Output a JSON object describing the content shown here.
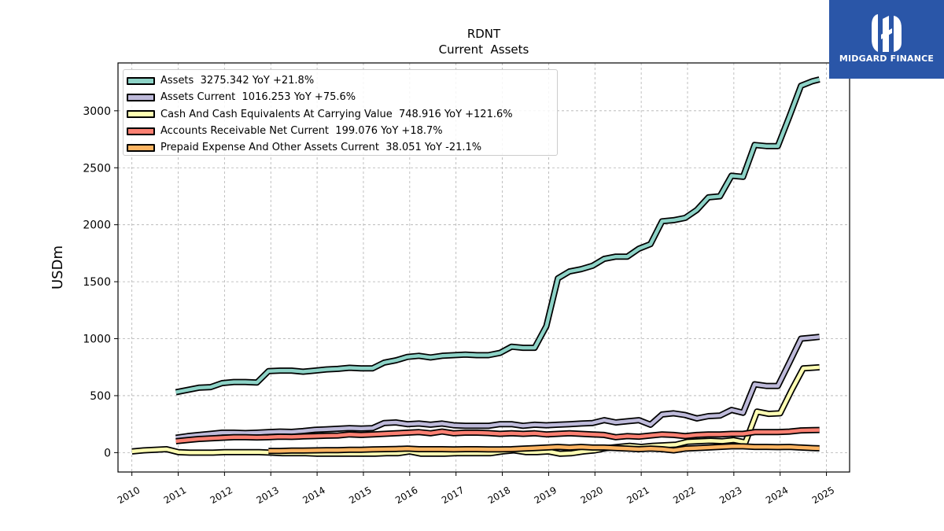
{
  "brand": {
    "name": "MIDGARD FINANCE",
    "bg_color": "#2a56a8"
  },
  "chart_data": {
    "type": "line",
    "title": "RDNT",
    "subtitle": "Current  Assets",
    "ylabel": "USDm",
    "xlabel": "",
    "xlim": [
      2009.7,
      2025.5
    ],
    "ylim": [
      -170,
      3420
    ],
    "yticks": [
      0,
      500,
      1000,
      1500,
      2000,
      2500,
      3000
    ],
    "xticks": [
      "2010",
      "2011",
      "2012",
      "2013",
      "2014",
      "2015",
      "2016",
      "2017",
      "2018",
      "2019",
      "2020",
      "2021",
      "2022",
      "2023",
      "2024",
      "2025"
    ],
    "grid": true,
    "legend_position": "top-left",
    "series": [
      {
        "name": "Assets  3275.342 YoY +21.8%",
        "color": "#8dd3c7",
        "x": [
          2010.95,
          2011.2,
          2011.45,
          2011.7,
          2011.95,
          2012.2,
          2012.45,
          2012.7,
          2012.95,
          2013.2,
          2013.45,
          2013.7,
          2013.95,
          2014.2,
          2014.45,
          2014.7,
          2014.95,
          2015.2,
          2015.45,
          2015.7,
          2015.95,
          2016.2,
          2016.45,
          2016.7,
          2016.95,
          2017.2,
          2017.45,
          2017.7,
          2017.95,
          2018.2,
          2018.45,
          2018.7,
          2018.95,
          2019.2,
          2019.45,
          2019.7,
          2019.95,
          2020.2,
          2020.45,
          2020.7,
          2020.95,
          2021.2,
          2021.45,
          2021.7,
          2021.95,
          2022.2,
          2022.45,
          2022.7,
          2022.95,
          2023.2,
          2023.45,
          2023.7,
          2023.95,
          2024.2,
          2024.45,
          2024.7,
          2024.85
        ],
        "values": [
          530,
          550,
          570,
          575,
          610,
          620,
          620,
          615,
          715,
          720,
          720,
          710,
          720,
          730,
          735,
          745,
          740,
          740,
          790,
          810,
          840,
          850,
          835,
          850,
          855,
          860,
          855,
          855,
          875,
          930,
          920,
          920,
          1110,
          1530,
          1590,
          1610,
          1640,
          1700,
          1720,
          1720,
          1790,
          1830,
          2030,
          2040,
          2060,
          2130,
          2240,
          2250,
          2430,
          2420,
          2700,
          2690,
          2690,
          2950,
          3220,
          3260,
          3275
        ]
      },
      {
        "name": "Assets Current  1016.253 YoY +75.6%",
        "color": "#bebada",
        "x": [
          2010.95,
          2011.2,
          2011.45,
          2011.7,
          2011.95,
          2012.2,
          2012.45,
          2012.7,
          2012.95,
          2013.2,
          2013.45,
          2013.7,
          2013.95,
          2014.2,
          2014.45,
          2014.7,
          2014.95,
          2015.2,
          2015.45,
          2015.7,
          2015.95,
          2016.2,
          2016.45,
          2016.7,
          2016.95,
          2017.2,
          2017.45,
          2017.7,
          2017.95,
          2018.2,
          2018.45,
          2018.7,
          2018.95,
          2019.2,
          2019.45,
          2019.7,
          2019.95,
          2020.2,
          2020.45,
          2020.7,
          2020.95,
          2021.2,
          2021.45,
          2021.7,
          2021.95,
          2022.2,
          2022.45,
          2022.7,
          2022.95,
          2023.2,
          2023.45,
          2023.7,
          2023.95,
          2024.2,
          2024.45,
          2024.7,
          2024.85
        ],
        "values": [
          130,
          145,
          155,
          165,
          175,
          175,
          172,
          175,
          180,
          185,
          182,
          190,
          200,
          205,
          210,
          215,
          212,
          215,
          260,
          265,
          250,
          255,
          245,
          255,
          240,
          235,
          235,
          235,
          250,
          250,
          235,
          245,
          240,
          245,
          250,
          255,
          260,
          285,
          265,
          275,
          285,
          245,
          335,
          345,
          330,
          300,
          320,
          325,
          375,
          350,
          600,
          585,
          585,
          790,
          1000,
          1010,
          1016
        ]
      },
      {
        "name": "Cash And Cash Equivalents At Carrying Value  748.916 YoY +121.6%",
        "color": "#ffffb3",
        "x": [
          2010.0,
          2010.25,
          2010.5,
          2010.75,
          2011.0,
          2011.25,
          2011.5,
          2011.75,
          2012.0,
          2012.25,
          2012.5,
          2012.75,
          2013.0,
          2013.25,
          2013.5,
          2013.75,
          2014.0,
          2014.25,
          2014.5,
          2014.75,
          2015.0,
          2015.25,
          2015.5,
          2015.75,
          2016.0,
          2016.25,
          2016.5,
          2016.75,
          2017.0,
          2017.25,
          2017.5,
          2017.75,
          2018.0,
          2018.25,
          2018.5,
          2018.75,
          2019.0,
          2019.25,
          2019.5,
          2019.75,
          2020.0,
          2020.25,
          2020.5,
          2020.75,
          2021.0,
          2021.25,
          2021.5,
          2021.75,
          2022.0,
          2022.25,
          2022.5,
          2022.75,
          2023.0,
          2023.25,
          2023.5,
          2023.75,
          2024.0,
          2024.25,
          2024.5,
          2024.7,
          2024.85
        ],
        "values": [
          10,
          20,
          25,
          30,
          5,
          0,
          0,
          0,
          5,
          5,
          5,
          5,
          0,
          -5,
          -5,
          -5,
          -10,
          -10,
          -10,
          -10,
          -10,
          -10,
          -5,
          -5,
          10,
          -10,
          -10,
          -10,
          -5,
          -5,
          -5,
          -5,
          10,
          20,
          5,
          5,
          10,
          -10,
          -5,
          10,
          20,
          40,
          50,
          60,
          50,
          60,
          65,
          70,
          95,
          100,
          105,
          100,
          110,
          90,
          360,
          340,
          345,
          550,
          740,
          745,
          749
        ]
      },
      {
        "name": "Accounts Receivable Net Current  199.076 YoY +18.7%",
        "color": "#fb8072",
        "x": [
          2010.95,
          2011.2,
          2011.45,
          2011.7,
          2011.95,
          2012.2,
          2012.45,
          2012.7,
          2012.95,
          2013.2,
          2013.45,
          2013.7,
          2013.95,
          2014.2,
          2014.45,
          2014.7,
          2014.95,
          2015.2,
          2015.45,
          2015.7,
          2015.95,
          2016.2,
          2016.45,
          2016.7,
          2016.95,
          2017.2,
          2017.45,
          2017.7,
          2017.95,
          2018.2,
          2018.45,
          2018.7,
          2018.95,
          2019.2,
          2019.45,
          2019.7,
          2019.95,
          2020.2,
          2020.45,
          2020.7,
          2020.95,
          2021.2,
          2021.45,
          2021.7,
          2021.95,
          2022.2,
          2022.45,
          2022.7,
          2022.95,
          2023.2,
          2023.45,
          2023.7,
          2023.95,
          2024.2,
          2024.45,
          2024.7,
          2024.85
        ],
        "values": [
          100,
          110,
          120,
          125,
          130,
          135,
          135,
          133,
          135,
          140,
          138,
          142,
          145,
          148,
          150,
          160,
          155,
          160,
          165,
          170,
          175,
          180,
          170,
          185,
          170,
          175,
          175,
          172,
          165,
          170,
          165,
          170,
          160,
          165,
          170,
          165,
          160,
          155,
          135,
          145,
          140,
          150,
          160,
          155,
          145,
          155,
          160,
          160,
          165,
          165,
          180,
          180,
          180,
          185,
          195,
          198,
          199
        ]
      },
      {
        "name": "Prepaid Expense And Other Assets Current  38.051 YoY -21.1%",
        "color": "#fdb462",
        "x": [
          2012.95,
          2013.2,
          2013.45,
          2013.7,
          2013.95,
          2014.2,
          2014.45,
          2014.7,
          2014.95,
          2015.2,
          2015.45,
          2015.7,
          2015.95,
          2016.2,
          2016.45,
          2016.7,
          2016.95,
          2017.2,
          2017.45,
          2017.7,
          2017.95,
          2018.2,
          2018.45,
          2018.7,
          2018.95,
          2019.2,
          2019.45,
          2019.7,
          2019.95,
          2020.2,
          2020.45,
          2020.7,
          2020.95,
          2021.2,
          2021.45,
          2021.7,
          2021.95,
          2022.2,
          2022.45,
          2022.7,
          2022.95,
          2023.2,
          2023.45,
          2023.7,
          2023.95,
          2024.2,
          2024.45,
          2024.7,
          2024.85
        ],
        "values": [
          15,
          15,
          18,
          18,
          20,
          22,
          22,
          25,
          25,
          28,
          30,
          32,
          35,
          30,
          30,
          30,
          28,
          30,
          30,
          28,
          28,
          30,
          35,
          40,
          45,
          50,
          45,
          50,
          45,
          45,
          40,
          35,
          30,
          35,
          30,
          20,
          35,
          40,
          45,
          50,
          55,
          55,
          50,
          50,
          48,
          50,
          45,
          40,
          38
        ]
      }
    ]
  }
}
